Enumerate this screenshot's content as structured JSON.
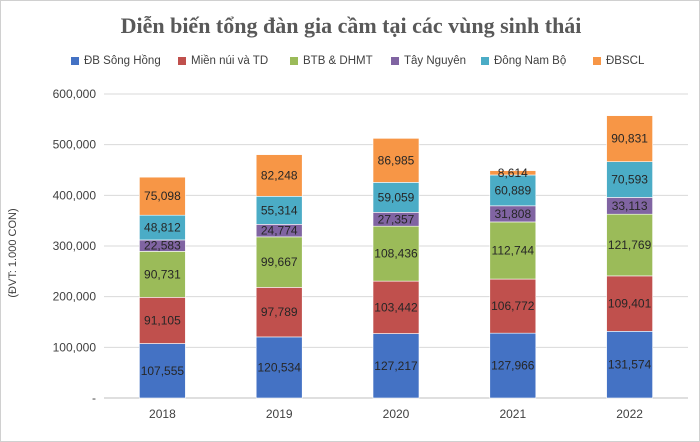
{
  "chart_data": {
    "type": "bar",
    "stacked": true,
    "title": "Diễn biến tổng đàn gia cầm tại các vùng sinh thái",
    "ylabel": "(ĐVT: 1.000 CON)",
    "xlabel": "",
    "categories": [
      "2018",
      "2019",
      "2020",
      "2021",
      "2022"
    ],
    "ylim": [
      0,
      600000
    ],
    "yticks": [
      0,
      100000,
      200000,
      300000,
      400000,
      500000,
      600000
    ],
    "ytick_labels": [
      "-",
      "100,000",
      "200,000",
      "300,000",
      "400,000",
      "500,000",
      "600,000"
    ],
    "grid": true,
    "legend_position": "top",
    "series": [
      {
        "name": "ĐB Sông Hồng",
        "color": "#4472C4",
        "values": [
          107555,
          120534,
          127217,
          127966,
          131574
        ],
        "labels": [
          "107,555",
          "120,534",
          "127,217",
          "127,966",
          "131,574"
        ]
      },
      {
        "name": "Miền núi và TD",
        "color": "#C0504D",
        "values": [
          91105,
          97789,
          103442,
          106772,
          109401
        ],
        "labels": [
          "91,105",
          "97,789",
          "103,442",
          "106,772",
          "109,401"
        ]
      },
      {
        "name": "BTB & DHMT",
        "color": "#9BBB59",
        "values": [
          90731,
          99667,
          108436,
          112744,
          121769
        ],
        "labels": [
          "90,731",
          "99,667",
          "108,436",
          "112,744",
          "121,769"
        ]
      },
      {
        "name": "Tây Nguyên",
        "color": "#8064A2",
        "values": [
          22583,
          24774,
          27357,
          31808,
          33113
        ],
        "labels": [
          "22,583",
          "24,774",
          "27,357",
          "31,808",
          "33,113"
        ]
      },
      {
        "name": "Đông Nam Bộ",
        "color": "#4BACC6",
        "values": [
          48812,
          55314,
          59059,
          60889,
          70593
        ],
        "labels": [
          "48,812",
          "55,314",
          "59,059",
          "60,889",
          "70,593"
        ]
      },
      {
        "name": "ĐBSCL",
        "color": "#F79646",
        "values": [
          75098,
          82248,
          86985,
          8614,
          90831
        ],
        "labels": [
          "75,098",
          "82,248",
          "86,985",
          "8,614",
          "90,831"
        ]
      }
    ]
  }
}
